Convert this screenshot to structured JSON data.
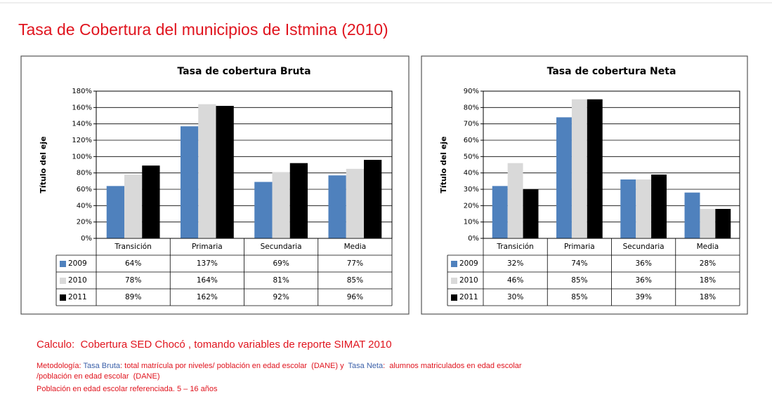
{
  "title": "Tasa de Cobertura del municipios de Istmina (2010)",
  "chart_data": [
    {
      "type": "bar",
      "title": "Tasa de cobertura Bruta",
      "ylabel": "Título del eje",
      "categories": [
        "Transición",
        "Primaria",
        "Secundaria",
        "Media"
      ],
      "series": [
        {
          "name": "2009",
          "color": "#4f81bd",
          "values": [
            64,
            137,
            69,
            77
          ],
          "value_labels": [
            "64%",
            "137%",
            "69%",
            "77%"
          ]
        },
        {
          "name": "2010",
          "color": "#d9d9d9",
          "values": [
            78,
            164,
            81,
            85
          ],
          "value_labels": [
            "78%",
            "164%",
            "81%",
            "85%"
          ]
        },
        {
          "name": "2011",
          "color": "#000000",
          "values": [
            89,
            162,
            92,
            96
          ],
          "value_labels": [
            "89%",
            "162%",
            "92%",
            "96%"
          ]
        }
      ],
      "ylim": [
        0,
        180
      ],
      "yticks": [
        {
          "value": 0,
          "label": "0%"
        },
        {
          "value": 20,
          "label": "20%"
        },
        {
          "value": 40,
          "label": "40%"
        },
        {
          "value": 60,
          "label": "60%"
        },
        {
          "value": 80,
          "label": "80%"
        },
        {
          "value": 100,
          "label": "100%"
        },
        {
          "value": 120,
          "label": "120%"
        },
        {
          "value": 140,
          "label": "140%"
        },
        {
          "value": 160,
          "label": "160%"
        },
        {
          "value": 180,
          "label": "180%"
        }
      ],
      "grid": true
    },
    {
      "type": "bar",
      "title": "Tasa de cobertura Neta",
      "ylabel": "Título del eje",
      "categories": [
        "Transición",
        "Primaria",
        "Secundaria",
        "Media"
      ],
      "series": [
        {
          "name": "2009",
          "color": "#4f81bd",
          "values": [
            32,
            74,
            36,
            28
          ],
          "value_labels": [
            "32%",
            "74%",
            "36%",
            "28%"
          ]
        },
        {
          "name": "2010",
          "color": "#d9d9d9",
          "values": [
            46,
            85,
            36,
            18
          ],
          "value_labels": [
            "46%",
            "85%",
            "36%",
            "18%"
          ]
        },
        {
          "name": "2011",
          "color": "#000000",
          "values": [
            30,
            85,
            39,
            18
          ],
          "value_labels": [
            "30%",
            "85%",
            "39%",
            "18%"
          ]
        }
      ],
      "ylim": [
        0,
        90
      ],
      "yticks": [
        {
          "value": 0,
          "label": "0%"
        },
        {
          "value": 10,
          "label": "10%"
        },
        {
          "value": 20,
          "label": "20%"
        },
        {
          "value": 30,
          "label": "30%"
        },
        {
          "value": 40,
          "label": "40%"
        },
        {
          "value": 50,
          "label": "50%"
        },
        {
          "value": 60,
          "label": "60%"
        },
        {
          "value": 70,
          "label": "70%"
        },
        {
          "value": 80,
          "label": "80%"
        },
        {
          "value": 90,
          "label": "90%"
        }
      ],
      "grid": true
    }
  ],
  "notes": {
    "source": "Calculo:  Cobertura SED Chocó , tomando variables de reporte SIMAT 2010",
    "methodology": [
      [
        {
          "text": "Metodología: ",
          "color": "#e0141e"
        },
        {
          "text": "Tasa Bruta",
          "color": "#3a5fa8"
        },
        {
          "text": ": total matrícula por niveles/ población en edad escolar  (DANE) y  ",
          "color": "#e0141e"
        },
        {
          "text": "Tasa Neta",
          "color": "#3a5fa8"
        },
        {
          "text": ":  alumnos matriculados en edad escolar",
          "color": "#e0141e"
        }
      ],
      [
        {
          "text": "/población en edad escolar  (DANE)",
          "color": "#e0141e"
        }
      ]
    ],
    "population": "Población en edad escolar referenciada. 5 – 16 años"
  }
}
